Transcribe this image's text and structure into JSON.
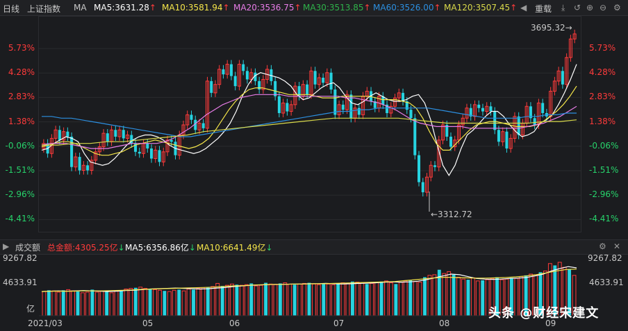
{
  "header": {
    "period": "日线",
    "index_name": "上证指数",
    "ma_label": "MA",
    "ma5": "MA5:3631.28",
    "ma10": "MA10:3581.94",
    "ma20": "MA20:3536.75",
    "ma30": "MA30:3513.85",
    "ma60": "MA60:3526.00",
    "ma120": "MA120:3507.45",
    "reload": "重载"
  },
  "colors": {
    "up": "#ff3b3b",
    "down": "#27d3e0",
    "ma5": "#ffffff",
    "ma10": "#f5e64a",
    "ma20": "#e87de8",
    "ma30": "#2fb34a",
    "ma60": "#2c8fe0",
    "ma120": "#d9d94a"
  },
  "axis": {
    "left_pct": [
      "5.73%",
      "4.28%",
      "2.83%",
      "1.38%",
      "-0.06%",
      "-1.51%",
      "-2.96%",
      "-4.41%"
    ],
    "right_pct": [
      "5.73%",
      "4.28%",
      "2.83%",
      "1.38%",
      "-0.06%",
      "-1.51%",
      "-2.96%",
      "-4.41%"
    ],
    "vol_left": [
      "9267.82",
      "4633.91",
      "亿"
    ],
    "vol_right": [
      "9267.82",
      "4633.91"
    ],
    "x_labels": [
      "2021/03",
      "05",
      "06",
      "07",
      "08",
      "09"
    ]
  },
  "annotations": {
    "high": "3695.32→",
    "low": "←3312.72"
  },
  "volume_header": {
    "title": "成交额",
    "total": "总金额:4305.25亿",
    "ma5": "MA5:6356.86亿",
    "ma10": "MA10:6641.49亿"
  },
  "watermark": "头条 @财经宋建文",
  "chart_data": [
    {
      "type": "candlestick",
      "title": "上证指数",
      "yaxis_labels": [
        "5.73%",
        "4.28%",
        "2.83%",
        "1.38%",
        "-0.06%",
        "-1.51%",
        "-2.96%",
        "-4.41%"
      ],
      "ylim_pct": [
        -4.41,
        5.73
      ],
      "high_label": "3695.32",
      "low_label": "3312.72",
      "candles": [
        {
          "o": -0.2,
          "c": 0.1
        },
        {
          "o": 0.1,
          "c": -0.5
        },
        {
          "o": -0.5,
          "c": 0.4
        },
        {
          "o": 0.4,
          "c": 0.9
        },
        {
          "o": 0.9,
          "c": 0.3
        },
        {
          "o": 0.3,
          "c": 0.8
        },
        {
          "o": 0.8,
          "c": 0.5
        },
        {
          "o": 0.5,
          "c": -1.3
        },
        {
          "o": -1.3,
          "c": -0.7
        },
        {
          "o": -0.7,
          "c": -1.5
        },
        {
          "o": -1.5,
          "c": -1.2
        },
        {
          "o": -1.2,
          "c": -1.5
        },
        {
          "o": -1.5,
          "c": -0.9
        },
        {
          "o": -0.9,
          "c": -0.4
        },
        {
          "o": -0.4,
          "c": -0.1
        },
        {
          "o": -0.1,
          "c": 0.7
        },
        {
          "o": 0.7,
          "c": 0.2
        },
        {
          "o": 0.2,
          "c": 0.9
        },
        {
          "o": 0.9,
          "c": 0.5
        },
        {
          "o": 0.5,
          "c": 0.9
        },
        {
          "o": 0.9,
          "c": 0.4
        },
        {
          "o": 0.4,
          "c": 0.6
        },
        {
          "o": 0.6,
          "c": 0.1
        },
        {
          "o": 0.1,
          "c": -0.4
        },
        {
          "o": -0.4,
          "c": -0.5
        },
        {
          "o": -0.5,
          "c": 0.1
        },
        {
          "o": 0.1,
          "c": -0.2
        },
        {
          "o": -0.2,
          "c": -0.8
        },
        {
          "o": -0.8,
          "c": -0.3
        },
        {
          "o": -0.3,
          "c": -1.0
        },
        {
          "o": -1.0,
          "c": -0.4
        },
        {
          "o": -0.4,
          "c": 0.3
        },
        {
          "o": 0.3,
          "c": 0.2
        },
        {
          "o": 0.2,
          "c": -0.6
        },
        {
          "o": -0.6,
          "c": 0.6
        },
        {
          "o": 0.6,
          "c": 1.2
        },
        {
          "o": 1.2,
          "c": 1.8
        },
        {
          "o": 1.8,
          "c": 1.5
        },
        {
          "o": 1.5,
          "c": 0.9
        },
        {
          "o": 0.9,
          "c": 1.3
        },
        {
          "o": 1.3,
          "c": 1.0
        },
        {
          "o": 1.0,
          "c": 3.8
        },
        {
          "o": 3.8,
          "c": 3.1
        },
        {
          "o": 3.1,
          "c": 3.6
        },
        {
          "o": 3.6,
          "c": 4.5
        },
        {
          "o": 4.5,
          "c": 4.2
        },
        {
          "o": 4.2,
          "c": 4.8
        },
        {
          "o": 4.8,
          "c": 4.1
        },
        {
          "o": 4.1,
          "c": 3.5
        },
        {
          "o": 3.5,
          "c": 4.8
        },
        {
          "o": 4.8,
          "c": 4.4
        },
        {
          "o": 4.4,
          "c": 3.9
        },
        {
          "o": 3.9,
          "c": 4.3
        },
        {
          "o": 4.3,
          "c": 3.8
        },
        {
          "o": 3.8,
          "c": 3.3
        },
        {
          "o": 3.3,
          "c": 3.9
        },
        {
          "o": 3.9,
          "c": 4.5
        },
        {
          "o": 4.5,
          "c": 3.8
        },
        {
          "o": 3.8,
          "c": 2.9
        },
        {
          "o": 2.9,
          "c": 1.9
        },
        {
          "o": 1.9,
          "c": 2.5
        },
        {
          "o": 2.5,
          "c": 2.0
        },
        {
          "o": 2.0,
          "c": 2.4
        },
        {
          "o": 2.4,
          "c": 3.5
        },
        {
          "o": 3.5,
          "c": 2.9
        },
        {
          "o": 2.9,
          "c": 3.6
        },
        {
          "o": 3.6,
          "c": 3.0
        },
        {
          "o": 3.0,
          "c": 4.4
        },
        {
          "o": 4.4,
          "c": 3.6
        },
        {
          "o": 3.6,
          "c": 4.0
        },
        {
          "o": 4.0,
          "c": 3.7
        },
        {
          "o": 3.7,
          "c": 4.3
        },
        {
          "o": 4.3,
          "c": 3.3
        },
        {
          "o": 3.3,
          "c": 1.8
        },
        {
          "o": 1.8,
          "c": 2.4
        },
        {
          "o": 2.4,
          "c": 2.1
        },
        {
          "o": 2.1,
          "c": 3.0
        },
        {
          "o": 3.0,
          "c": 1.6
        },
        {
          "o": 1.6,
          "c": 2.2
        },
        {
          "o": 2.2,
          "c": 1.8
        },
        {
          "o": 1.8,
          "c": 2.9
        },
        {
          "o": 2.9,
          "c": 3.2
        },
        {
          "o": 3.2,
          "c": 2.6
        },
        {
          "o": 2.6,
          "c": 2.2
        },
        {
          "o": 2.2,
          "c": 2.9
        },
        {
          "o": 2.9,
          "c": 2.4
        },
        {
          "o": 2.4,
          "c": 1.9
        },
        {
          "o": 1.9,
          "c": 2.3
        },
        {
          "o": 2.3,
          "c": 2.8
        },
        {
          "o": 2.8,
          "c": 3.1
        },
        {
          "o": 3.1,
          "c": 2.6
        },
        {
          "o": 2.6,
          "c": 2.1
        },
        {
          "o": 2.1,
          "c": 1.6
        },
        {
          "o": 1.6,
          "c": -0.6
        },
        {
          "o": -0.6,
          "c": -2.2
        },
        {
          "o": -2.2,
          "c": -2.8
        },
        {
          "o": -2.8,
          "c": -1.9
        },
        {
          "o": -1.9,
          "c": -1.2
        },
        {
          "o": -1.2,
          "c": -1.3
        },
        {
          "o": -1.3,
          "c": 0.3
        },
        {
          "o": 0.3,
          "c": 1.2
        },
        {
          "o": 1.2,
          "c": 0.5
        },
        {
          "o": 0.5,
          "c": -0.1
        },
        {
          "o": -0.1,
          "c": 0.3
        },
        {
          "o": 0.3,
          "c": 1.2
        },
        {
          "o": 1.2,
          "c": 1.6
        },
        {
          "o": 1.6,
          "c": 2.2
        },
        {
          "o": 2.2,
          "c": 1.7
        },
        {
          "o": 1.7,
          "c": 2.4
        },
        {
          "o": 2.4,
          "c": 2.2
        },
        {
          "o": 2.2,
          "c": 2.0
        },
        {
          "o": 2.0,
          "c": 2.3
        },
        {
          "o": 2.3,
          "c": 2.0
        },
        {
          "o": 2.0,
          "c": 0.9
        },
        {
          "o": 0.9,
          "c": 0.2
        },
        {
          "o": 0.2,
          "c": 0.8
        },
        {
          "o": 0.8,
          "c": -0.2
        },
        {
          "o": -0.2,
          "c": 0.4
        },
        {
          "o": 0.4,
          "c": 1.7
        },
        {
          "o": 1.7,
          "c": 0.6
        },
        {
          "o": 0.6,
          "c": 1.3
        },
        {
          "o": 1.3,
          "c": 2.3
        },
        {
          "o": 2.3,
          "c": 1.6
        },
        {
          "o": 1.6,
          "c": 1.2
        },
        {
          "o": 1.2,
          "c": 2.5
        },
        {
          "o": 2.5,
          "c": 1.9
        },
        {
          "o": 1.9,
          "c": 1.7
        },
        {
          "o": 1.7,
          "c": 3.2
        },
        {
          "o": 3.2,
          "c": 3.8
        },
        {
          "o": 3.8,
          "c": 4.4
        },
        {
          "o": 4.4,
          "c": 3.6
        },
        {
          "o": 3.6,
          "c": 5.2
        },
        {
          "o": 5.2,
          "c": 6.3
        },
        {
          "o": 6.3,
          "c": 6.6
        }
      ],
      "ma_series": [
        {
          "name": "MA5",
          "values": [
            -0.3,
            -0.2,
            0.1,
            0.3,
            0.5,
            0.4,
            0.2,
            -0.5,
            -1.0,
            -1.1,
            -1.2,
            -1.1,
            -0.8,
            -0.4,
            0.0,
            0.3,
            0.5,
            0.6,
            0.6,
            0.5,
            0.3,
            0.0,
            -0.2,
            -0.3,
            -0.4,
            -0.5,
            -0.4,
            -0.2,
            0.1,
            0.4,
            0.8,
            1.3,
            2.0,
            2.9,
            3.6,
            4.1,
            4.3,
            4.2,
            4.1,
            4.0,
            3.8,
            3.5,
            3.0,
            2.7,
            2.8,
            3.1,
            3.4,
            3.6,
            3.7,
            3.4,
            2.9,
            2.5,
            2.4,
            2.6,
            2.9,
            3.1,
            2.9,
            2.7,
            2.6,
            2.6,
            2.7,
            2.9,
            3.0,
            2.5,
            1.5,
            0.1,
            -1.2,
            -1.8,
            -1.2,
            -0.2,
            0.6,
            0.9,
            1.3,
            1.7,
            2.0,
            2.0,
            1.7,
            1.2,
            0.8,
            0.5,
            0.6,
            0.8,
            1.3,
            1.5,
            1.8,
            2.4,
            3.1,
            3.9,
            4.8
          ]
        },
        {
          "name": "MA10",
          "values": [
            -0.1,
            0.0,
            0.1,
            0.2,
            0.2,
            0.1,
            -0.1,
            -0.3,
            -0.5,
            -0.6,
            -0.6,
            -0.5,
            -0.4,
            -0.2,
            0.0,
            0.1,
            0.2,
            0.3,
            0.2,
            0.1,
            0.0,
            -0.1,
            -0.2,
            -0.1,
            0.1,
            0.4,
            0.9,
            1.5,
            2.1,
            2.6,
            3.0,
            3.3,
            3.4,
            3.4,
            3.3,
            3.2,
            3.1,
            3.0,
            3.0,
            3.0,
            3.0,
            2.9,
            2.8,
            2.8,
            2.8,
            2.9,
            2.9,
            2.9,
            2.9,
            2.9,
            2.8,
            2.7,
            2.7,
            2.7,
            2.6,
            2.5,
            2.2,
            1.6,
            0.8,
            0.1,
            -0.3,
            -0.3,
            0.1,
            0.5,
            0.9,
            1.2,
            1.3,
            1.4,
            1.4,
            1.3,
            1.2,
            1.1,
            1.1,
            1.1,
            1.2,
            1.4,
            1.7,
            2.0,
            2.4,
            2.9,
            3.5
          ]
        },
        {
          "name": "MA20",
          "values": [
            0.0,
            0.1,
            0.1,
            0.1,
            0.0,
            -0.1,
            -0.2,
            -0.2,
            -0.2,
            -0.1,
            0.0,
            0.1,
            0.1,
            0.1,
            0.1,
            0.2,
            0.4,
            0.7,
            1.0,
            1.4,
            1.8,
            2.1,
            2.4,
            2.6,
            2.8,
            2.9,
            3.0,
            3.0,
            3.0,
            3.0,
            2.9,
            2.9,
            2.9,
            2.9,
            2.9,
            2.9,
            2.9,
            2.8,
            2.8,
            2.7,
            2.6,
            2.5,
            2.3,
            2.1,
            1.8,
            1.5,
            1.3,
            1.2,
            1.1,
            1.1,
            1.1,
            1.1,
            1.0,
            1.0,
            1.0,
            1.0,
            1.0,
            1.0,
            1.0,
            1.1,
            1.2,
            1.3,
            1.5,
            1.7,
            2.0,
            2.3
          ]
        },
        {
          "name": "MA60",
          "values": [
            1.7,
            1.7,
            1.6,
            1.6,
            1.5,
            1.4,
            1.3,
            1.2,
            1.1,
            1.0,
            0.9,
            0.8,
            0.7,
            0.6,
            0.5,
            0.5,
            0.6,
            0.7,
            0.8,
            0.9,
            1.0,
            1.1,
            1.2,
            1.3,
            1.4,
            1.5,
            1.6,
            1.7,
            1.8,
            1.9,
            2.0,
            2.0,
            2.1,
            2.1,
            2.2,
            2.2,
            2.2,
            2.2,
            2.2,
            2.2,
            2.1,
            2.0,
            1.9,
            1.8,
            1.7,
            1.6,
            1.6,
            1.6,
            1.6,
            1.7,
            1.7,
            1.8,
            1.8,
            1.9,
            1.9
          ]
        },
        {
          "name": "MA120",
          "values": [
            0.0,
            0.0,
            0.1,
            0.1,
            0.2,
            0.2,
            0.3,
            0.4,
            0.5,
            0.6,
            0.8,
            0.9,
            1.0,
            1.1,
            1.2,
            1.3,
            1.4,
            1.5,
            1.6,
            1.6,
            1.6,
            1.6,
            1.6,
            1.5,
            1.4,
            1.3,
            1.3,
            1.3,
            1.3,
            1.3,
            1.3,
            1.4,
            1.4,
            1.5
          ]
        }
      ]
    },
    {
      "type": "bar",
      "title": "成交额",
      "yaxis_labels": [
        "9267.82",
        "4633.91"
      ],
      "unit": "亿",
      "ylim": [
        0,
        9267.82
      ],
      "values": [
        3900,
        4100,
        4000,
        3800,
        4100,
        4200,
        4000,
        3900,
        3700,
        3800,
        4200,
        3800,
        4000,
        3900,
        3700,
        4000,
        4100,
        4300,
        4400,
        4500,
        4600,
        4400,
        4300,
        4200,
        4100,
        4000,
        3900,
        4100,
        4200,
        4000,
        4300,
        4200,
        4400,
        4500,
        4600,
        4700,
        5200,
        4800,
        4900,
        5100,
        5000,
        4900,
        5000,
        5200,
        4800,
        4900,
        5300,
        5100,
        5000,
        5200,
        5300,
        5100,
        5000,
        5100,
        5200,
        5300,
        5100,
        5000,
        5200,
        5100,
        5000,
        5200,
        5300,
        5200,
        5500,
        5400,
        5300,
        5100,
        5200,
        5400,
        5500,
        5600,
        5300,
        5100,
        5400,
        5600,
        5700,
        5500,
        5400,
        6200,
        6500,
        6600,
        7400,
        6800,
        7100,
        6600,
        6200,
        5900,
        5800,
        6100,
        5600,
        5700,
        5800,
        6000,
        6200,
        5800,
        5900,
        6100,
        6000,
        6300,
        6500,
        6700,
        6600,
        7000,
        7200,
        8400,
        8100,
        8600,
        7800,
        7500,
        6500
      ],
      "ma_series": [
        {
          "name": "MA5",
          "values": [
            3900,
            3950,
            4000,
            3950,
            4000,
            4050,
            4000,
            3950,
            3900,
            3950,
            4050,
            4100,
            4200,
            4300,
            4350,
            4400,
            4450,
            4400,
            4350,
            4300,
            4350,
            4450,
            4550,
            4700,
            4800,
            4900,
            4950,
            5000,
            5050,
            5050,
            5100,
            5100,
            5150,
            5150,
            5200,
            5150,
            5100,
            5150,
            5200,
            5250,
            5300,
            5400,
            5450,
            5400,
            5450,
            5550,
            5800,
            6100,
            6400,
            6700,
            6600,
            6300,
            6000,
            5900,
            5850,
            5900,
            6000,
            6050,
            6150,
            6400,
            6700,
            7200,
            7600,
            7900,
            7700
          ]
        },
        {
          "name": "MA10",
          "values": [
            3900,
            3950,
            3950,
            3950,
            4000,
            4000,
            4000,
            4050,
            4100,
            4150,
            4250,
            4300,
            4350,
            4400,
            4450,
            4500,
            4550,
            4600,
            4700,
            4800,
            4850,
            4950,
            5000,
            5050,
            5050,
            5100,
            5100,
            5150,
            5150,
            5200,
            5250,
            5300,
            5350,
            5400,
            5450,
            5500,
            5650,
            5800,
            5950,
            6100,
            6200,
            6150,
            6100,
            6050,
            6050,
            6100,
            6150,
            6250,
            6400,
            6600,
            6900,
            7200,
            7450,
            7500
          ]
        }
      ]
    }
  ]
}
